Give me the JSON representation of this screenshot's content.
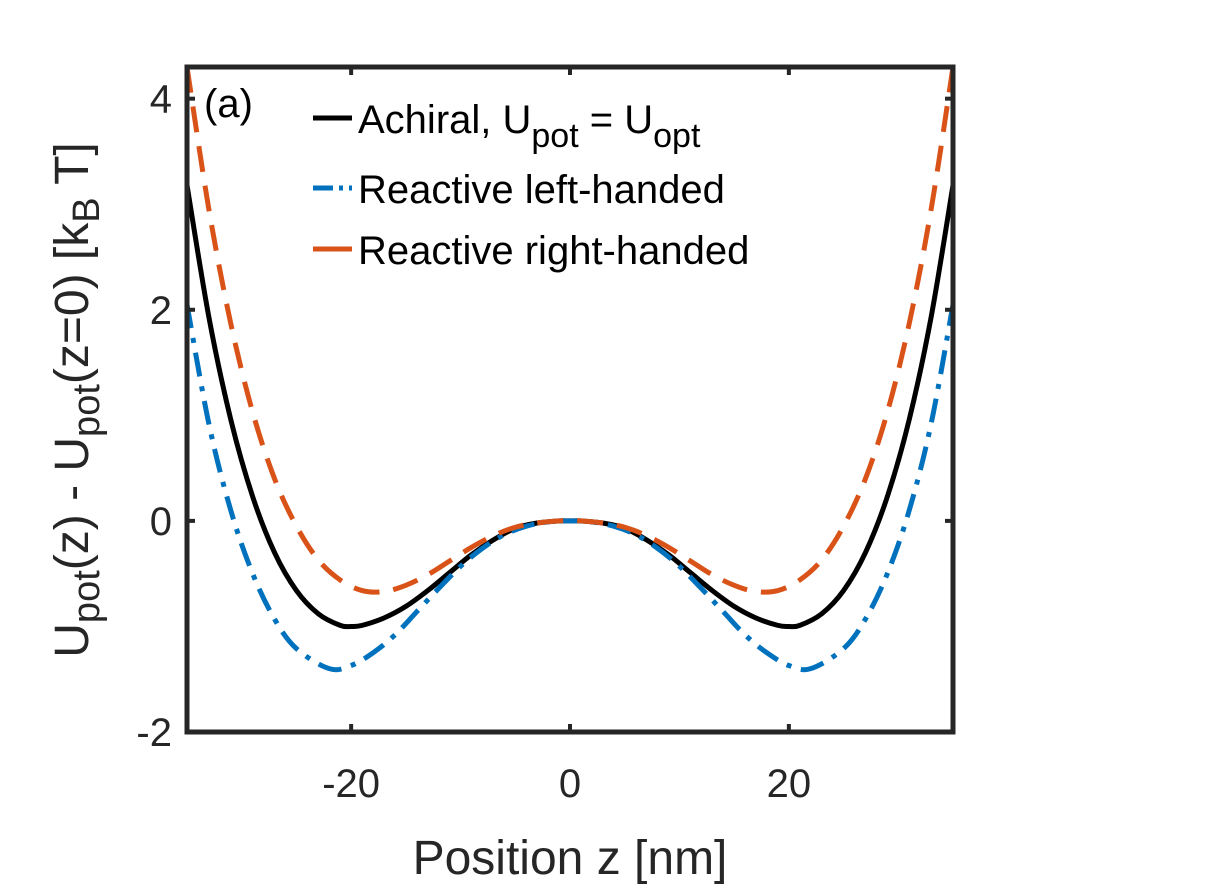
{
  "chart_data": {
    "type": "line",
    "panel_label": "(a)",
    "xlabel": "Position z [nm]",
    "ylabel": {
      "parts": [
        "U",
        "pot",
        "(z) - U",
        "pot",
        "(z=0) [k",
        "B",
        " T]"
      ]
    },
    "xlim": [
      -35,
      35
    ],
    "ylim": [
      -2,
      4.3
    ],
    "xticks": [
      -20,
      0,
      20
    ],
    "yticks": [
      -2,
      0,
      2,
      4
    ],
    "xtick_labels": [
      "-20",
      "0",
      "20"
    ],
    "ytick_labels": [
      "-2",
      "0",
      "2",
      "4"
    ],
    "grid": false,
    "legend_position": "top-center",
    "series": [
      {
        "name": "Achiral, U_pot = U_opt",
        "legend_parts": [
          "Achiral, U",
          "pot",
          " = U",
          "opt"
        ],
        "color": "#000000",
        "style": "solid",
        "x": [
          -35,
          -33,
          -31,
          -29,
          -27,
          -25,
          -23,
          -21,
          -20,
          -19,
          -17,
          -15,
          -13,
          -11,
          -9,
          -7,
          -5,
          -3,
          -1,
          0,
          1,
          3,
          5,
          7,
          9,
          11,
          13,
          15,
          17,
          19,
          20,
          21,
          23,
          25,
          27,
          29,
          31,
          33,
          35
        ],
        "y": [
          3.18,
          1.93,
          0.96,
          0.23,
          -0.3,
          -0.66,
          -0.88,
          -0.99,
          -1.0,
          -0.99,
          -0.92,
          -0.81,
          -0.66,
          -0.49,
          -0.32,
          -0.18,
          -0.07,
          -0.02,
          0.0,
          0.0,
          0.0,
          -0.02,
          -0.07,
          -0.18,
          -0.32,
          -0.49,
          -0.66,
          -0.81,
          -0.92,
          -0.99,
          -1.0,
          -0.99,
          -0.88,
          -0.66,
          -0.3,
          0.23,
          0.96,
          1.93,
          3.18
        ]
      },
      {
        "name": "Reactive left-handed",
        "legend_parts": [
          "Reactive left-handed"
        ],
        "color": "#0072BD",
        "style": "dashdot",
        "x": [
          -35,
          -33,
          -31,
          -29,
          -27,
          -25,
          -22,
          -20,
          -18,
          -16,
          -14,
          -12,
          -10,
          -8,
          -6,
          -4,
          -2,
          0,
          2,
          4,
          6,
          8,
          10,
          12,
          14,
          16,
          18,
          20,
          22,
          25,
          27,
          29,
          31,
          33,
          35
        ],
        "y": [
          2.05,
          0.92,
          0.1,
          -0.5,
          -0.93,
          -1.21,
          -1.4,
          -1.37,
          -1.25,
          -1.08,
          -0.86,
          -0.64,
          -0.43,
          -0.26,
          -0.13,
          -0.05,
          -0.01,
          0.0,
          -0.01,
          -0.05,
          -0.13,
          -0.26,
          -0.43,
          -0.64,
          -0.86,
          -1.08,
          -1.25,
          -1.37,
          -1.4,
          -1.21,
          -0.93,
          -0.5,
          0.1,
          0.92,
          2.05
        ]
      },
      {
        "name": "Reactive right-handed",
        "legend_parts": [
          "Reactive right-handed"
        ],
        "color": "#D95319",
        "style": "dashed",
        "x": [
          -35,
          -33,
          -31,
          -29,
          -27,
          -25,
          -23,
          -21,
          -19,
          -17,
          -15,
          -13,
          -11,
          -9,
          -7,
          -5,
          -3,
          -1,
          0,
          1,
          3,
          5,
          7,
          9,
          11,
          13,
          15,
          17,
          19,
          21,
          23,
          25,
          27,
          29,
          31,
          33,
          35
        ],
        "y": [
          4.3,
          2.95,
          1.87,
          1.03,
          0.4,
          -0.05,
          -0.37,
          -0.56,
          -0.66,
          -0.67,
          -0.61,
          -0.51,
          -0.38,
          -0.25,
          -0.14,
          -0.06,
          -0.02,
          0.0,
          0.0,
          0.0,
          -0.02,
          -0.06,
          -0.14,
          -0.25,
          -0.38,
          -0.51,
          -0.61,
          -0.67,
          -0.66,
          -0.56,
          -0.37,
          -0.05,
          0.4,
          1.03,
          1.87,
          2.95,
          4.3
        ]
      }
    ]
  }
}
